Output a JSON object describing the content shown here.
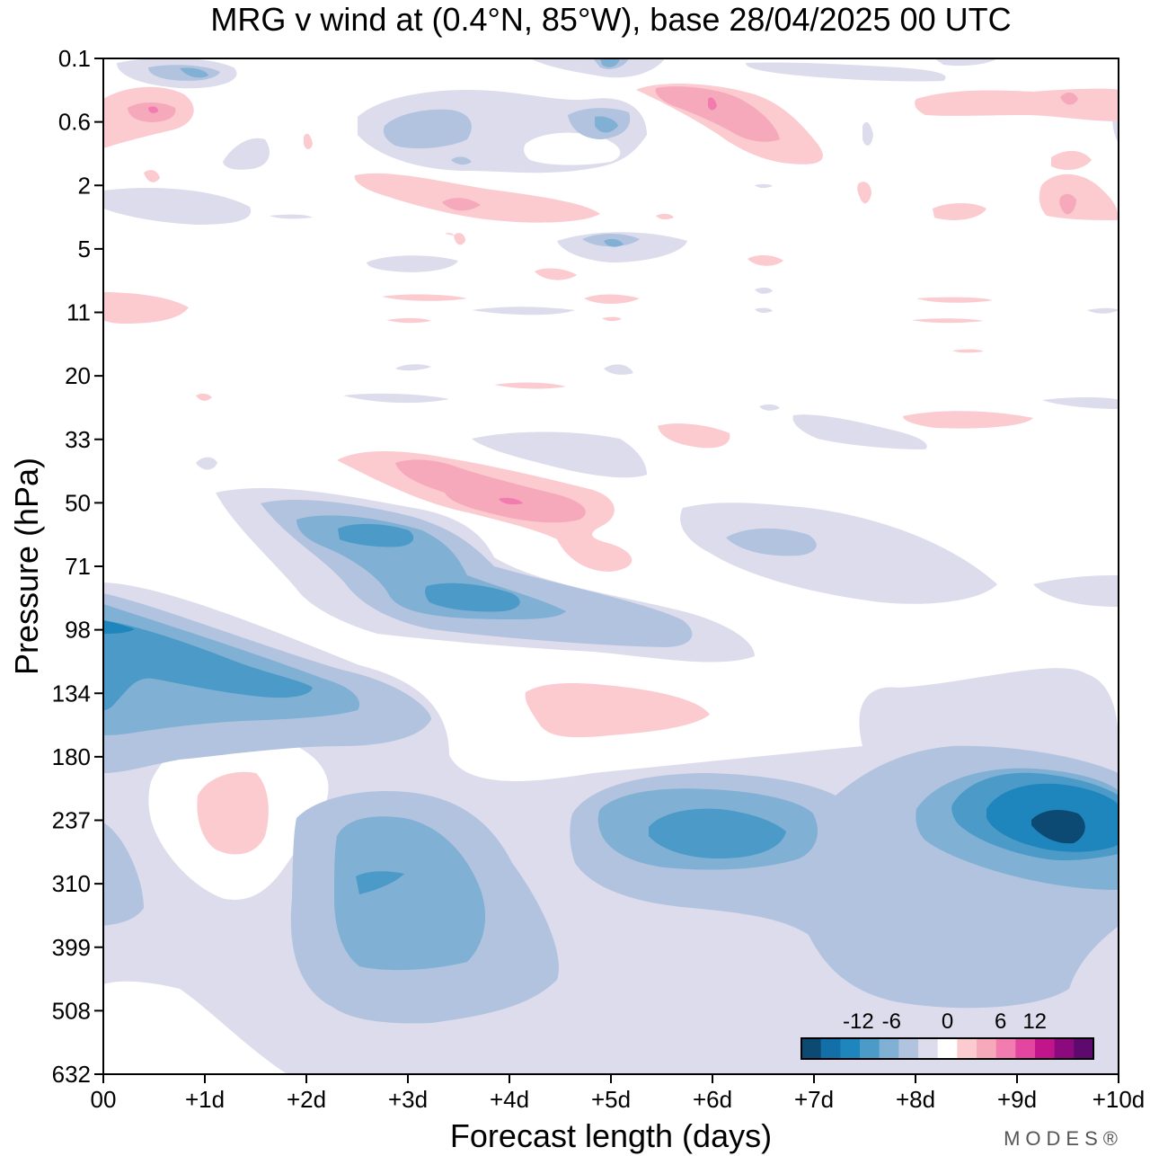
{
  "chart_data": {
    "type": "heatmap",
    "title": "MRG v wind at (0.4°N, 85°W),  base 28/04/2025  00 UTC",
    "xlabel": "Forecast length (days)",
    "ylabel": "Pressure (hPa)",
    "x_ticks": [
      "00",
      "+1d",
      "+2d",
      "+3d",
      "+4d",
      "+5d",
      "+6d",
      "+7d",
      "+8d",
      "+9d",
      "+10d"
    ],
    "y_ticks": [
      "0.1",
      "0.6",
      "2",
      "5",
      "11",
      "20",
      "33",
      "50",
      "71",
      "98",
      "134",
      "180",
      "237",
      "310",
      "399",
      "508",
      "632"
    ],
    "xlim": [
      0,
      10
    ],
    "y_scale": "log",
    "colorbar": {
      "tick_labels": [
        "-12",
        "-6",
        "0",
        "6",
        "12"
      ],
      "colors": [
        "#0c4a73",
        "#136fa8",
        "#1f86bd",
        "#4c9ac8",
        "#80b0d4",
        "#b2c3df",
        "#dcdcec",
        "#ffffff",
        "#fbcbd0",
        "#f7a9bc",
        "#f27bb0",
        "#e2469e",
        "#c0158b",
        "#8c0a7d",
        "#5e096e"
      ]
    },
    "features": [
      {
        "kind": "negative",
        "level": 3,
        "day": 0.4,
        "p": 110,
        "desc": "early negative band"
      },
      {
        "kind": "negative",
        "level": 3,
        "day": 3.5,
        "p": 78,
        "desc": "descending negative band"
      },
      {
        "kind": "negative",
        "level": 2,
        "day": 2.7,
        "p": 290,
        "desc": "upper-tropospheric minimum"
      },
      {
        "kind": "negative",
        "level": 3,
        "day": 6.0,
        "p": 237,
        "desc": "day-6 minimum"
      },
      {
        "kind": "negative",
        "level": 5,
        "day": 9.5,
        "p": 237,
        "desc": "strongest minimum"
      },
      {
        "kind": "positive",
        "level": 2,
        "day": 4.0,
        "p": 50,
        "desc": "stratospheric maximum"
      },
      {
        "kind": "positive",
        "level": 2,
        "day": 6.3,
        "p": 0.6,
        "desc": "upper stratospheric maximum"
      }
    ]
  },
  "brand": {
    "text": "MODES®"
  }
}
